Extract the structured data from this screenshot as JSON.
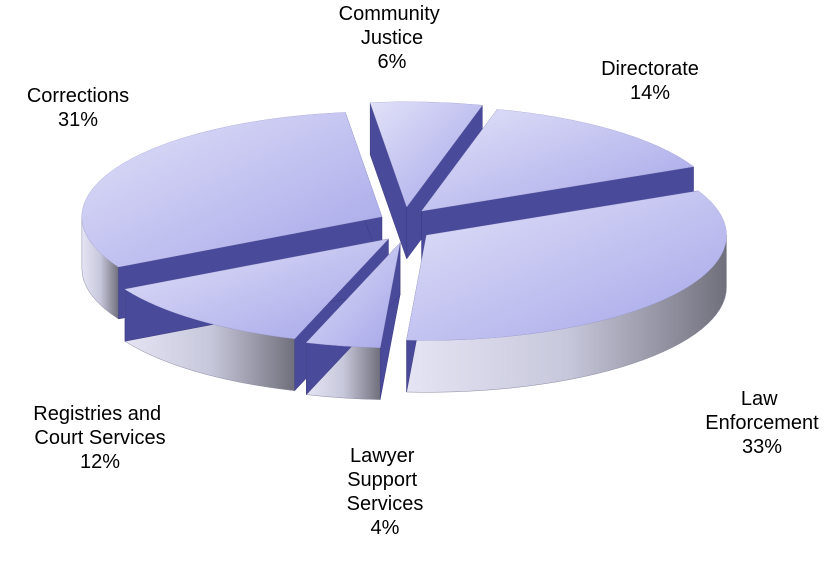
{
  "chart_data": {
    "type": "pie",
    "categories": [
      "Community Justice",
      "Directorate",
      "Law Enforcement",
      "Lawyer Support Services",
      "Registries and Court Services",
      "Corrections"
    ],
    "values": [
      6,
      14,
      33,
      4,
      12,
      31
    ],
    "value_labels": [
      "6%",
      "14%",
      "33%",
      "4%",
      "12%",
      "31%"
    ],
    "color": "#b4b4ee"
  }
}
